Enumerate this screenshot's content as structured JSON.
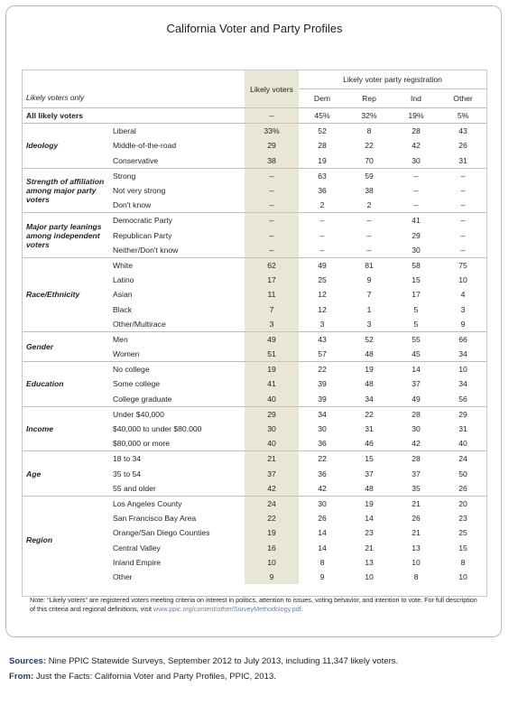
{
  "title": "California Voter and Party Profiles",
  "header": {
    "likely_only": "Likely voters only",
    "likely_col": "Likely voters",
    "reg_group": "Likely voter party registration",
    "cols": [
      "Dem",
      "Rep",
      "Ind",
      "Other"
    ]
  },
  "all": {
    "label": "All likely voters",
    "likely": "–",
    "vals": [
      "45%",
      "32%",
      "19%",
      "5%"
    ]
  },
  "groups": [
    {
      "name": "Ideology",
      "rows": [
        {
          "label": "Liberal",
          "likely": "33%",
          "vals": [
            "52",
            "8",
            "28",
            "43"
          ]
        },
        {
          "label": "Middle-of-the-road",
          "likely": "29",
          "vals": [
            "28",
            "22",
            "42",
            "26"
          ]
        },
        {
          "label": "Conservative",
          "likely": "38",
          "vals": [
            "19",
            "70",
            "30",
            "31"
          ]
        }
      ]
    },
    {
      "name": "Strength of affiliation among major party voters",
      "rows": [
        {
          "label": "Strong",
          "likely": "–",
          "vals": [
            "63",
            "59",
            "–",
            "–"
          ]
        },
        {
          "label": "Not very strong",
          "likely": "–",
          "vals": [
            "36",
            "38",
            "–",
            "–"
          ]
        },
        {
          "label": "Don't know",
          "likely": "–",
          "vals": [
            "2",
            "2",
            "–",
            "–"
          ]
        }
      ]
    },
    {
      "name": "Major party leanings among independent voters",
      "rows": [
        {
          "label": "Democratic Party",
          "likely": "–",
          "vals": [
            "–",
            "–",
            "41",
            "–"
          ]
        },
        {
          "label": "Republican Party",
          "likely": "–",
          "vals": [
            "–",
            "–",
            "29",
            "–"
          ]
        },
        {
          "label": "Neither/Don't know",
          "likely": "–",
          "vals": [
            "–",
            "–",
            "30",
            "–"
          ]
        }
      ]
    },
    {
      "name": "Race/Ethnicity",
      "rows": [
        {
          "label": "White",
          "likely": "62",
          "vals": [
            "49",
            "81",
            "58",
            "75"
          ]
        },
        {
          "label": "Latino",
          "likely": "17",
          "vals": [
            "25",
            "9",
            "15",
            "10"
          ]
        },
        {
          "label": "Asian",
          "likely": "11",
          "vals": [
            "12",
            "7",
            "17",
            "4"
          ]
        },
        {
          "label": "Black",
          "likely": "7",
          "vals": [
            "12",
            "1",
            "5",
            "3"
          ]
        },
        {
          "label": "Other/Multirace",
          "likely": "3",
          "vals": [
            "3",
            "3",
            "5",
            "9"
          ]
        }
      ]
    },
    {
      "name": "Gender",
      "rows": [
        {
          "label": "Men",
          "likely": "49",
          "vals": [
            "43",
            "52",
            "55",
            "66"
          ]
        },
        {
          "label": "Women",
          "likely": "51",
          "vals": [
            "57",
            "48",
            "45",
            "34"
          ]
        }
      ]
    },
    {
      "name": "Education",
      "rows": [
        {
          "label": "No college",
          "likely": "19",
          "vals": [
            "22",
            "19",
            "14",
            "10"
          ]
        },
        {
          "label": "Some college",
          "likely": "41",
          "vals": [
            "39",
            "48",
            "37",
            "34"
          ]
        },
        {
          "label": "College graduate",
          "likely": "40",
          "vals": [
            "39",
            "34",
            "49",
            "56"
          ]
        }
      ]
    },
    {
      "name": "Income",
      "rows": [
        {
          "label": "Under $40,000",
          "likely": "29",
          "vals": [
            "34",
            "22",
            "28",
            "29"
          ]
        },
        {
          "label": "$40,000 to under $80,000",
          "likely": "30",
          "vals": [
            "30",
            "31",
            "30",
            "31"
          ]
        },
        {
          "label": "$80,000 or more",
          "likely": "40",
          "vals": [
            "36",
            "46",
            "42",
            "40"
          ]
        }
      ]
    },
    {
      "name": "Age",
      "rows": [
        {
          "label": "18 to 34",
          "likely": "21",
          "vals": [
            "22",
            "15",
            "28",
            "24"
          ]
        },
        {
          "label": "35 to 54",
          "likely": "37",
          "vals": [
            "36",
            "37",
            "37",
            "50"
          ]
        },
        {
          "label": "55 and older",
          "likely": "42",
          "vals": [
            "42",
            "48",
            "35",
            "26"
          ]
        }
      ]
    },
    {
      "name": "Region",
      "rows": [
        {
          "label": "Los Angeles County",
          "likely": "24",
          "vals": [
            "30",
            "19",
            "21",
            "20"
          ]
        },
        {
          "label": "San Francisco Bay Area",
          "likely": "22",
          "vals": [
            "26",
            "14",
            "26",
            "23"
          ]
        },
        {
          "label": "Orange/San Diego Counties",
          "likely": "19",
          "vals": [
            "14",
            "23",
            "21",
            "25"
          ]
        },
        {
          "label": "Central Valley",
          "likely": "16",
          "vals": [
            "14",
            "21",
            "13",
            "15"
          ]
        },
        {
          "label": "Inland Empire",
          "likely": "10",
          "vals": [
            "8",
            "13",
            "10",
            "8"
          ]
        },
        {
          "label": "Other",
          "likely": "9",
          "vals": [
            "9",
            "10",
            "8",
            "10"
          ]
        }
      ]
    }
  ],
  "note": {
    "text": "Note: “Likely voters” are registered voters meeting criteria on interest in politics, attention to issues, voting behavior, and intention to vote. For full description of this criteria and regional definitions, visit ",
    "link": "www.ppic.org/content/other/SurveyMethodology.pdf",
    "end": "."
  },
  "footer": {
    "sources_label": "Sources:",
    "sources_text": " Nine PPIC Statewide Surveys, September 2012 to July 2013, including 11,347 likely voters.",
    "from_label": "From:",
    "from_text": " Just the Facts: California Voter and Party Profiles, PPIC, 2013."
  },
  "colors": {
    "likely_shade": "#e8e6d4",
    "link": "#6a7fa6",
    "footer_label": "#1f3d6b"
  }
}
